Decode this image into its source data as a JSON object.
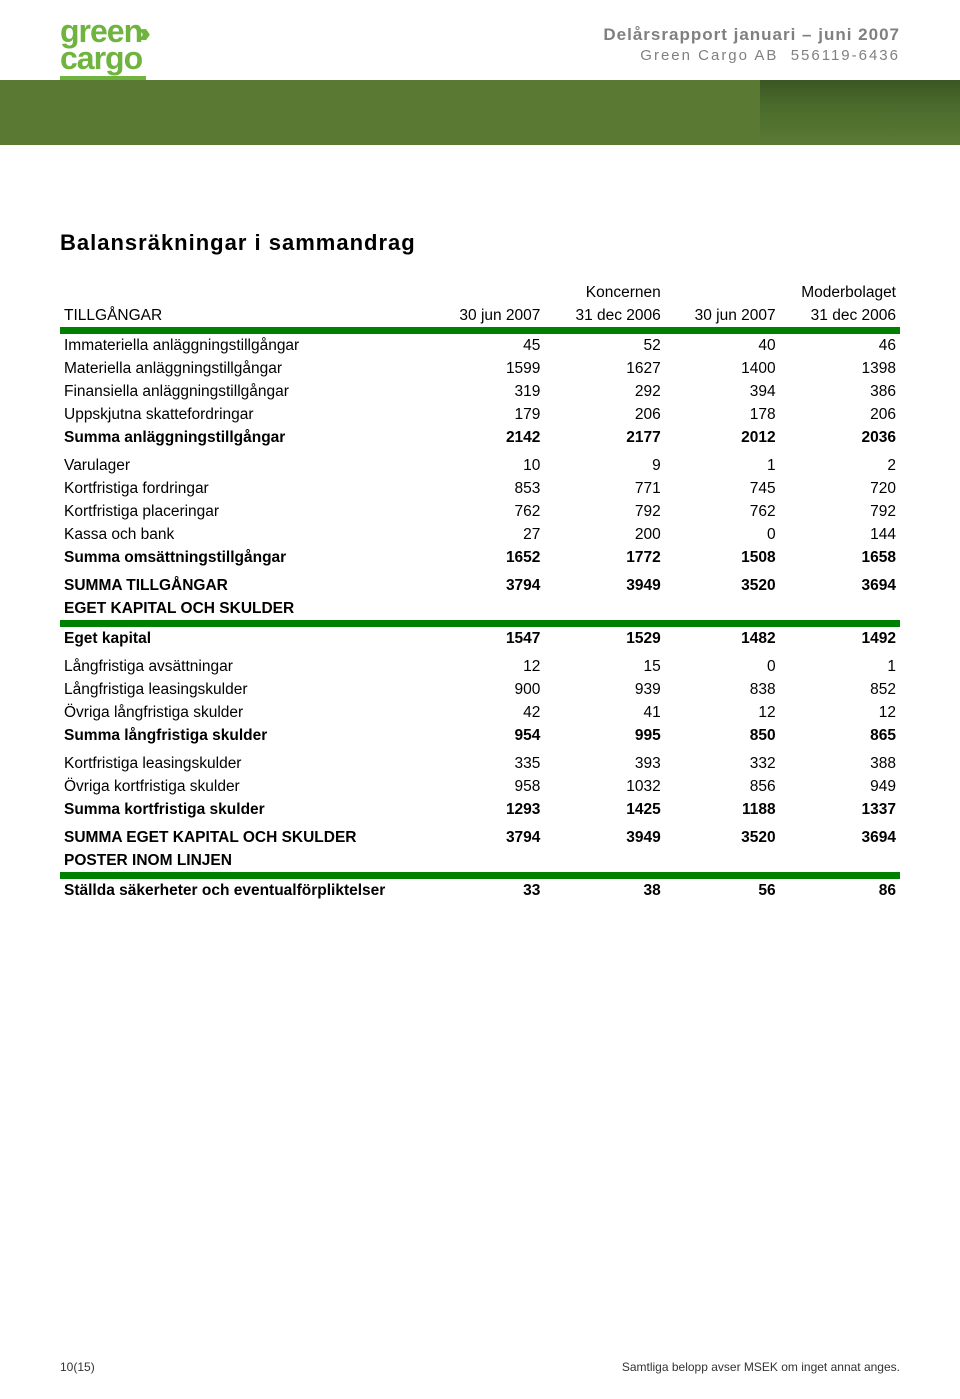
{
  "header": {
    "logo_line1": "green",
    "logo_line2": "cargo",
    "report_title": "Delårsrapport januari – juni 2007",
    "company": "Green Cargo AB",
    "orgnr": "556119-6436"
  },
  "section_title": "Balansräkningar i sammandrag",
  "columns": {
    "group1": "Koncernen",
    "group2": "Moderbolaget",
    "label": "TILLGÅNGAR",
    "c1": "30 jun 2007",
    "c2": "31 dec 2006",
    "c3": "30 jun 2007",
    "c4": "31 dec 2006"
  },
  "rows_assets1": [
    {
      "label": "Immateriella anläggningstillgångar",
      "v": [
        "45",
        "52",
        "40",
        "46"
      ]
    },
    {
      "label": "Materiella anläggningstillgångar",
      "v": [
        "1599",
        "1627",
        "1400",
        "1398"
      ]
    },
    {
      "label": "Finansiella anläggningstillgångar",
      "v": [
        "319",
        "292",
        "394",
        "386"
      ]
    },
    {
      "label": "Uppskjutna skattefordringar",
      "v": [
        "179",
        "206",
        "178",
        "206"
      ]
    }
  ],
  "row_sum_anlagg": {
    "label": "Summa anläggningstillgångar",
    "v": [
      "2142",
      "2177",
      "2012",
      "2036"
    ]
  },
  "rows_assets2": [
    {
      "label": "Varulager",
      "v": [
        "10",
        "9",
        "1",
        "2"
      ]
    },
    {
      "label": "Kortfristiga fordringar",
      "v": [
        "853",
        "771",
        "745",
        "720"
      ]
    },
    {
      "label": "Kortfristiga placeringar",
      "v": [
        "762",
        "792",
        "762",
        "792"
      ]
    },
    {
      "label": "Kassa och bank",
      "v": [
        "27",
        "200",
        "0",
        "144"
      ]
    }
  ],
  "row_sum_oms": {
    "label": "Summa omsättningstillgångar",
    "v": [
      "1652",
      "1772",
      "1508",
      "1658"
    ]
  },
  "row_sum_tillg": {
    "label": "SUMMA TILLGÅNGAR",
    "v": [
      "3794",
      "3949",
      "3520",
      "3694"
    ]
  },
  "section_ek": "EGET KAPITAL OCH SKULDER",
  "row_ek": {
    "label": "Eget kapital",
    "v": [
      "1547",
      "1529",
      "1482",
      "1492"
    ]
  },
  "rows_long": [
    {
      "label": "Långfristiga avsättningar",
      "v": [
        "12",
        "15",
        "0",
        "1"
      ]
    },
    {
      "label": "Långfristiga leasingskulder",
      "v": [
        "900",
        "939",
        "838",
        "852"
      ]
    },
    {
      "label": "Övriga långfristiga skulder",
      "v": [
        "42",
        "41",
        "12",
        "12"
      ]
    }
  ],
  "row_sum_long": {
    "label": "Summa långfristiga skulder",
    "v": [
      "954",
      "995",
      "850",
      "865"
    ]
  },
  "rows_short": [
    {
      "label": "Kortfristiga leasingskulder",
      "v": [
        "335",
        "393",
        "332",
        "388"
      ]
    },
    {
      "label": "Övriga kortfristiga skulder",
      "v": [
        "958",
        "1032",
        "856",
        "949"
      ]
    }
  ],
  "row_sum_short": {
    "label": "Summa kortfristiga skulder",
    "v": [
      "1293",
      "1425",
      "1188",
      "1337"
    ]
  },
  "row_sum_eks": {
    "label": "SUMMA EGET KAPITAL OCH SKULDER",
    "v": [
      "3794",
      "3949",
      "3520",
      "3694"
    ]
  },
  "section_poster": "POSTER INOM LINJEN",
  "row_poster": {
    "label": "Ställda säkerheter och eventualförpliktelser",
    "v": [
      "33",
      "38",
      "56",
      "86"
    ]
  },
  "footer": {
    "page": "10(15)",
    "note": "Samtliga belopp avser MSEK om inget annat anges."
  },
  "style": {
    "green_rule_color": "#008000",
    "text_color": "#000000",
    "header_gray": "#808080",
    "logo_green": "#6eb43f"
  }
}
